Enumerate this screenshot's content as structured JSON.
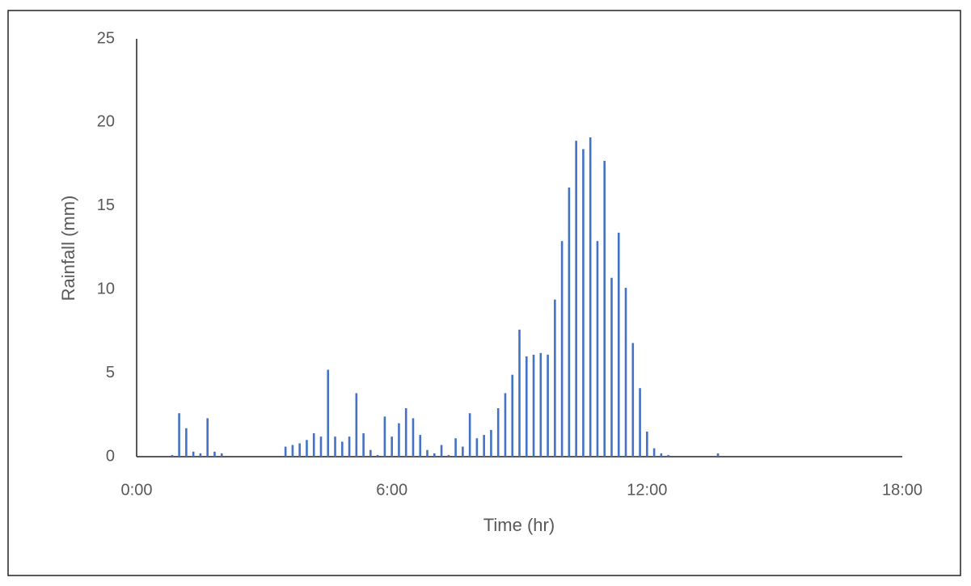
{
  "chart_data": {
    "type": "bar",
    "x_label": "Time (hr)",
    "y_label": "Rainfall (mm)",
    "x": [
      50,
      60,
      70,
      80,
      90,
      100,
      110,
      120,
      210,
      220,
      230,
      240,
      250,
      260,
      270,
      280,
      290,
      300,
      310,
      320,
      330,
      340,
      350,
      360,
      370,
      380,
      390,
      400,
      410,
      420,
      430,
      440,
      450,
      460,
      470,
      480,
      490,
      500,
      510,
      520,
      530,
      540,
      550,
      560,
      570,
      580,
      590,
      600,
      610,
      620,
      630,
      640,
      650,
      660,
      670,
      680,
      690,
      700,
      710,
      720,
      730,
      740,
      750,
      820
    ],
    "values": [
      0.1,
      2.6,
      1.7,
      0.3,
      0.2,
      2.3,
      0.3,
      0.2,
      0.6,
      0.7,
      0.8,
      1.0,
      1.4,
      1.2,
      5.2,
      1.2,
      0.9,
      1.2,
      3.8,
      1.4,
      0.4,
      0.1,
      2.4,
      1.2,
      2.0,
      2.9,
      2.3,
      1.3,
      0.4,
      0.2,
      0.7,
      0.1,
      1.1,
      0.6,
      2.6,
      1.1,
      1.3,
      1.6,
      2.9,
      3.8,
      4.9,
      7.6,
      6.0,
      6.1,
      6.2,
      6.1,
      9.4,
      12.9,
      16.1,
      18.9,
      18.4,
      19.1,
      12.9,
      17.7,
      10.7,
      13.4,
      10.1,
      6.8,
      4.1,
      1.5,
      0.5,
      0.2,
      0.1,
      0.2
    ],
    "color": "#4472c4",
    "xlim": [
      0,
      1080
    ],
    "xticks": [
      {
        "value": 0,
        "label": "0:00"
      },
      {
        "value": 360,
        "label": "6:00"
      },
      {
        "value": 720,
        "label": "12:00"
      },
      {
        "value": 1080,
        "label": "18:00"
      }
    ],
    "ylim": [
      0,
      25
    ],
    "yticks": [
      0,
      5,
      10,
      15,
      20,
      25
    ],
    "grid": false
  }
}
